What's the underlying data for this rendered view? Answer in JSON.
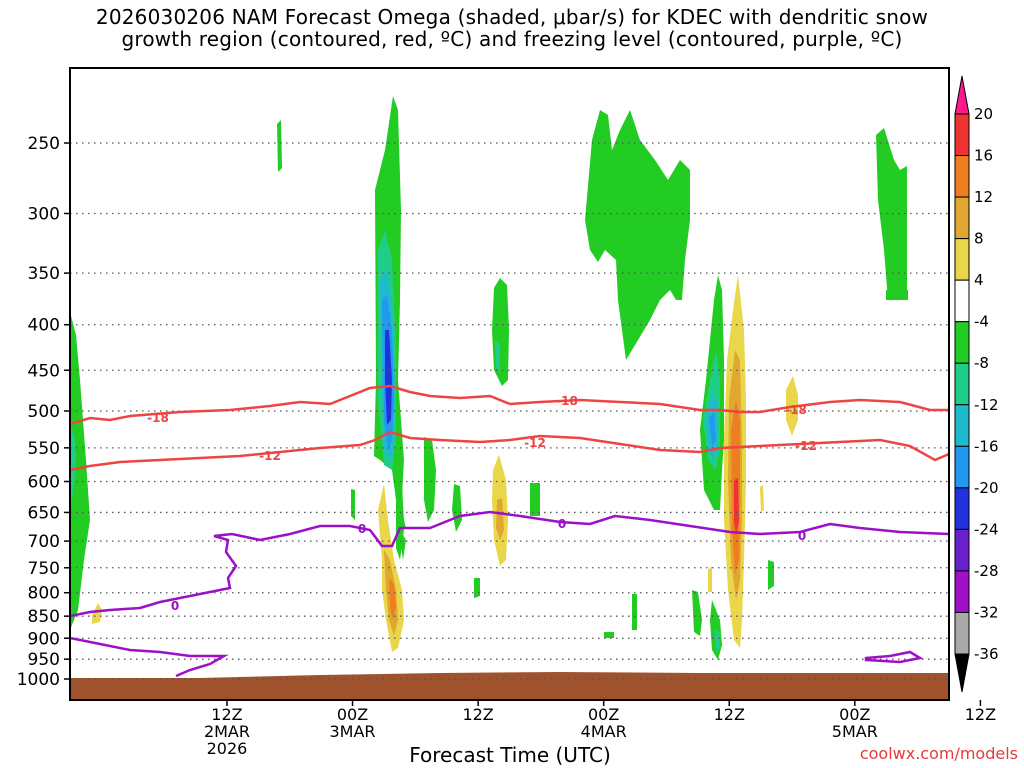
{
  "title_line1": "2026030206 NAM Forecast Omega (shaded, μbar/s) for KDEC with dendritic snow",
  "title_line2": "growth region (contoured, red, ºC) and freezing level (contoured, purple, ºC)",
  "credit": "coolwx.com/models",
  "chart_data": {
    "type": "heatmap",
    "xlabel": "Forecast Time (UTC)",
    "ylabel": "",
    "x_range_hours": [
      -9,
      75
    ],
    "y_range_hpa": [
      1030,
      200
    ],
    "y_ticks": [
      250,
      300,
      350,
      400,
      450,
      500,
      550,
      600,
      650,
      700,
      750,
      800,
      850,
      900,
      950,
      1000
    ],
    "x_ticks": [
      {
        "hour": 6,
        "lines": [
          "12Z",
          "2MAR",
          "2026"
        ]
      },
      {
        "hour": 18,
        "lines": [
          "00Z",
          "3MAR"
        ]
      },
      {
        "hour": 30,
        "lines": [
          "12Z"
        ]
      },
      {
        "hour": 42,
        "lines": [
          "00Z",
          "4MAR"
        ]
      },
      {
        "hour": 54,
        "lines": [
          "12Z"
        ]
      },
      {
        "hour": 66,
        "lines": [
          "00Z",
          "5MAR"
        ]
      },
      {
        "hour": 78,
        "lines": [
          "12Z"
        ]
      }
    ],
    "colorbar": {
      "labels": [
        "20",
        "16",
        "12",
        "8",
        "4",
        "-4",
        "-8",
        "-12",
        "-16",
        "-20",
        "-24",
        "-28",
        "-32",
        "-36"
      ],
      "colors": [
        "#ff1a8c",
        "#ee3333",
        "#ee7f20",
        "#e0a830",
        "#ead64a",
        "#ffffff",
        "#22cc22",
        "#1fcc88",
        "#1fbbcc",
        "#2299ee",
        "#2233dd",
        "#6a1fcc",
        "#a010c8",
        "#aaaaaa",
        "#000000"
      ]
    },
    "contours": [
      {
        "label": "-18",
        "color": "#ee4444"
      },
      {
        "label": "-12",
        "color": "#ee4444"
      },
      {
        "label": "0",
        "color": "#9b10c8"
      }
    ]
  }
}
